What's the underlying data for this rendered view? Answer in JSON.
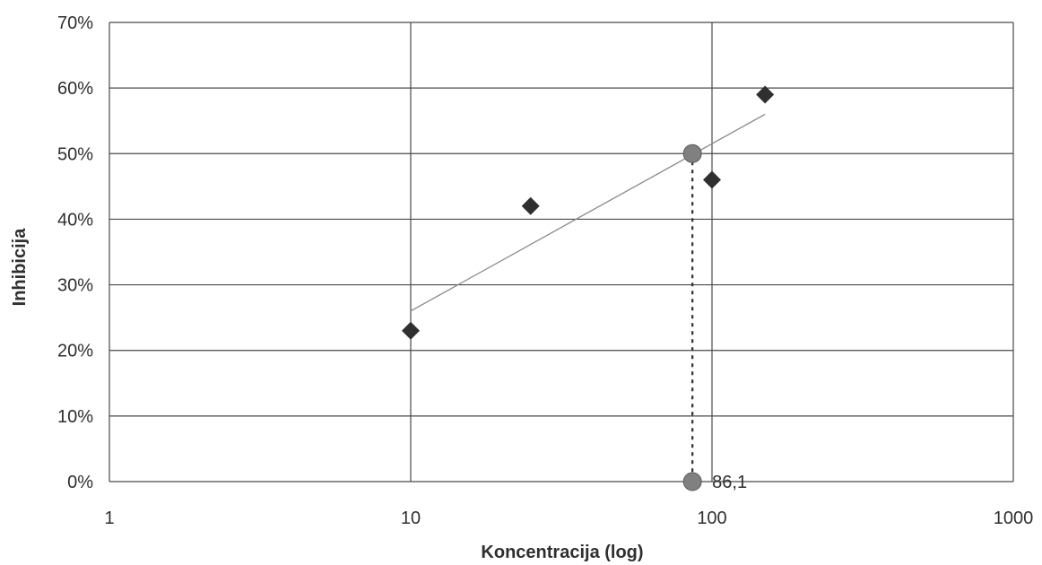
{
  "chart_data": {
    "type": "scatter",
    "xscale": "log",
    "xlim": [
      1,
      1000
    ],
    "ylim": [
      0,
      0.7
    ],
    "xlabel": "Koncentracija (log)",
    "ylabel": "Inhibicija",
    "grid": true,
    "x_ticks": [
      "1",
      "10",
      "100",
      "1000"
    ],
    "y_ticks": [
      "0%",
      "10%",
      "20%",
      "30%",
      "40%",
      "50%",
      "60%",
      "70%"
    ],
    "series": [
      {
        "marker": "diamond",
        "color": "#2f2f2f",
        "points": [
          {
            "x": 10,
            "y": 0.23
          },
          {
            "x": 25,
            "y": 0.42
          },
          {
            "x": 100,
            "y": 0.46
          },
          {
            "x": 150,
            "y": 0.59
          }
        ]
      }
    ],
    "trendline": {
      "type": "log",
      "color": "#8a8a8a",
      "from": {
        "x": 10,
        "y": 0.26
      },
      "to": {
        "x": 150,
        "y": 0.56
      }
    },
    "ic50": {
      "x": 86.1,
      "y": 0.5,
      "label": "86,1",
      "color": "#808080"
    }
  }
}
